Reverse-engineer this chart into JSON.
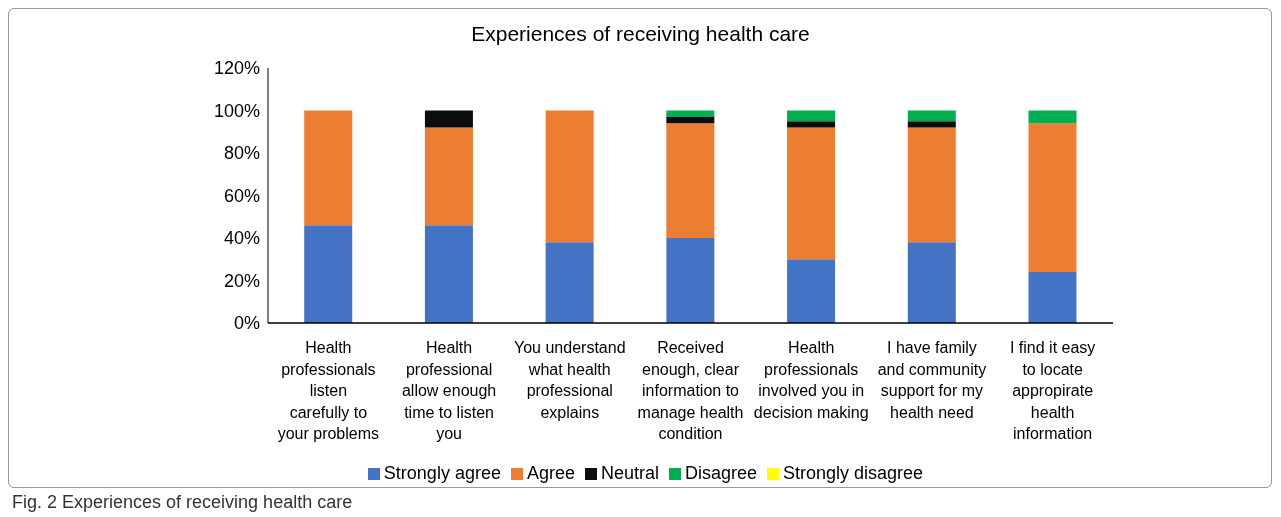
{
  "chart_data": {
    "type": "bar",
    "stacked": true,
    "title": "Experiences of receiving health care",
    "categories": [
      "Health professionals listen carefully to your problems",
      "Health professional allow enough time to listen you",
      "You understand what health professional explains",
      "Received enough, clear information to manage health condition",
      "Health professionals involved you in decision making",
      "I have family and community support for my health need",
      "I find it easy to locate appropirate health information"
    ],
    "series": [
      {
        "name": "Strongly agree",
        "color": "#4472c4",
        "values": [
          46,
          46,
          38,
          40,
          30,
          38,
          24
        ]
      },
      {
        "name": "Agree",
        "color": "#ed7d31",
        "values": [
          54,
          46,
          62,
          54,
          62,
          54,
          70
        ]
      },
      {
        "name": "Neutral",
        "color": "#0d0d0d",
        "values": [
          0,
          8,
          0,
          3,
          3,
          3,
          0
        ]
      },
      {
        "name": "Disagree",
        "color": "#00b050",
        "values": [
          0,
          0,
          0,
          3,
          5,
          5,
          6
        ]
      },
      {
        "name": "Strongly disagree",
        "color": "#ffff00",
        "values": [
          0,
          0,
          0,
          0,
          0,
          0,
          0
        ]
      }
    ],
    "ylim": [
      0,
      120
    ],
    "yticks": [
      {
        "value": 0,
        "label": "0%"
      },
      {
        "value": 20,
        "label": "20%"
      },
      {
        "value": 40,
        "label": "40%"
      },
      {
        "value": 60,
        "label": "60%"
      },
      {
        "value": 80,
        "label": "80%"
      },
      {
        "value": 100,
        "label": "100%"
      },
      {
        "value": 120,
        "label": "120%"
      }
    ],
    "grid": false,
    "legend": "bottom",
    "annotations": [
      "Fig. 2 Experiences of receiving health care"
    ]
  }
}
